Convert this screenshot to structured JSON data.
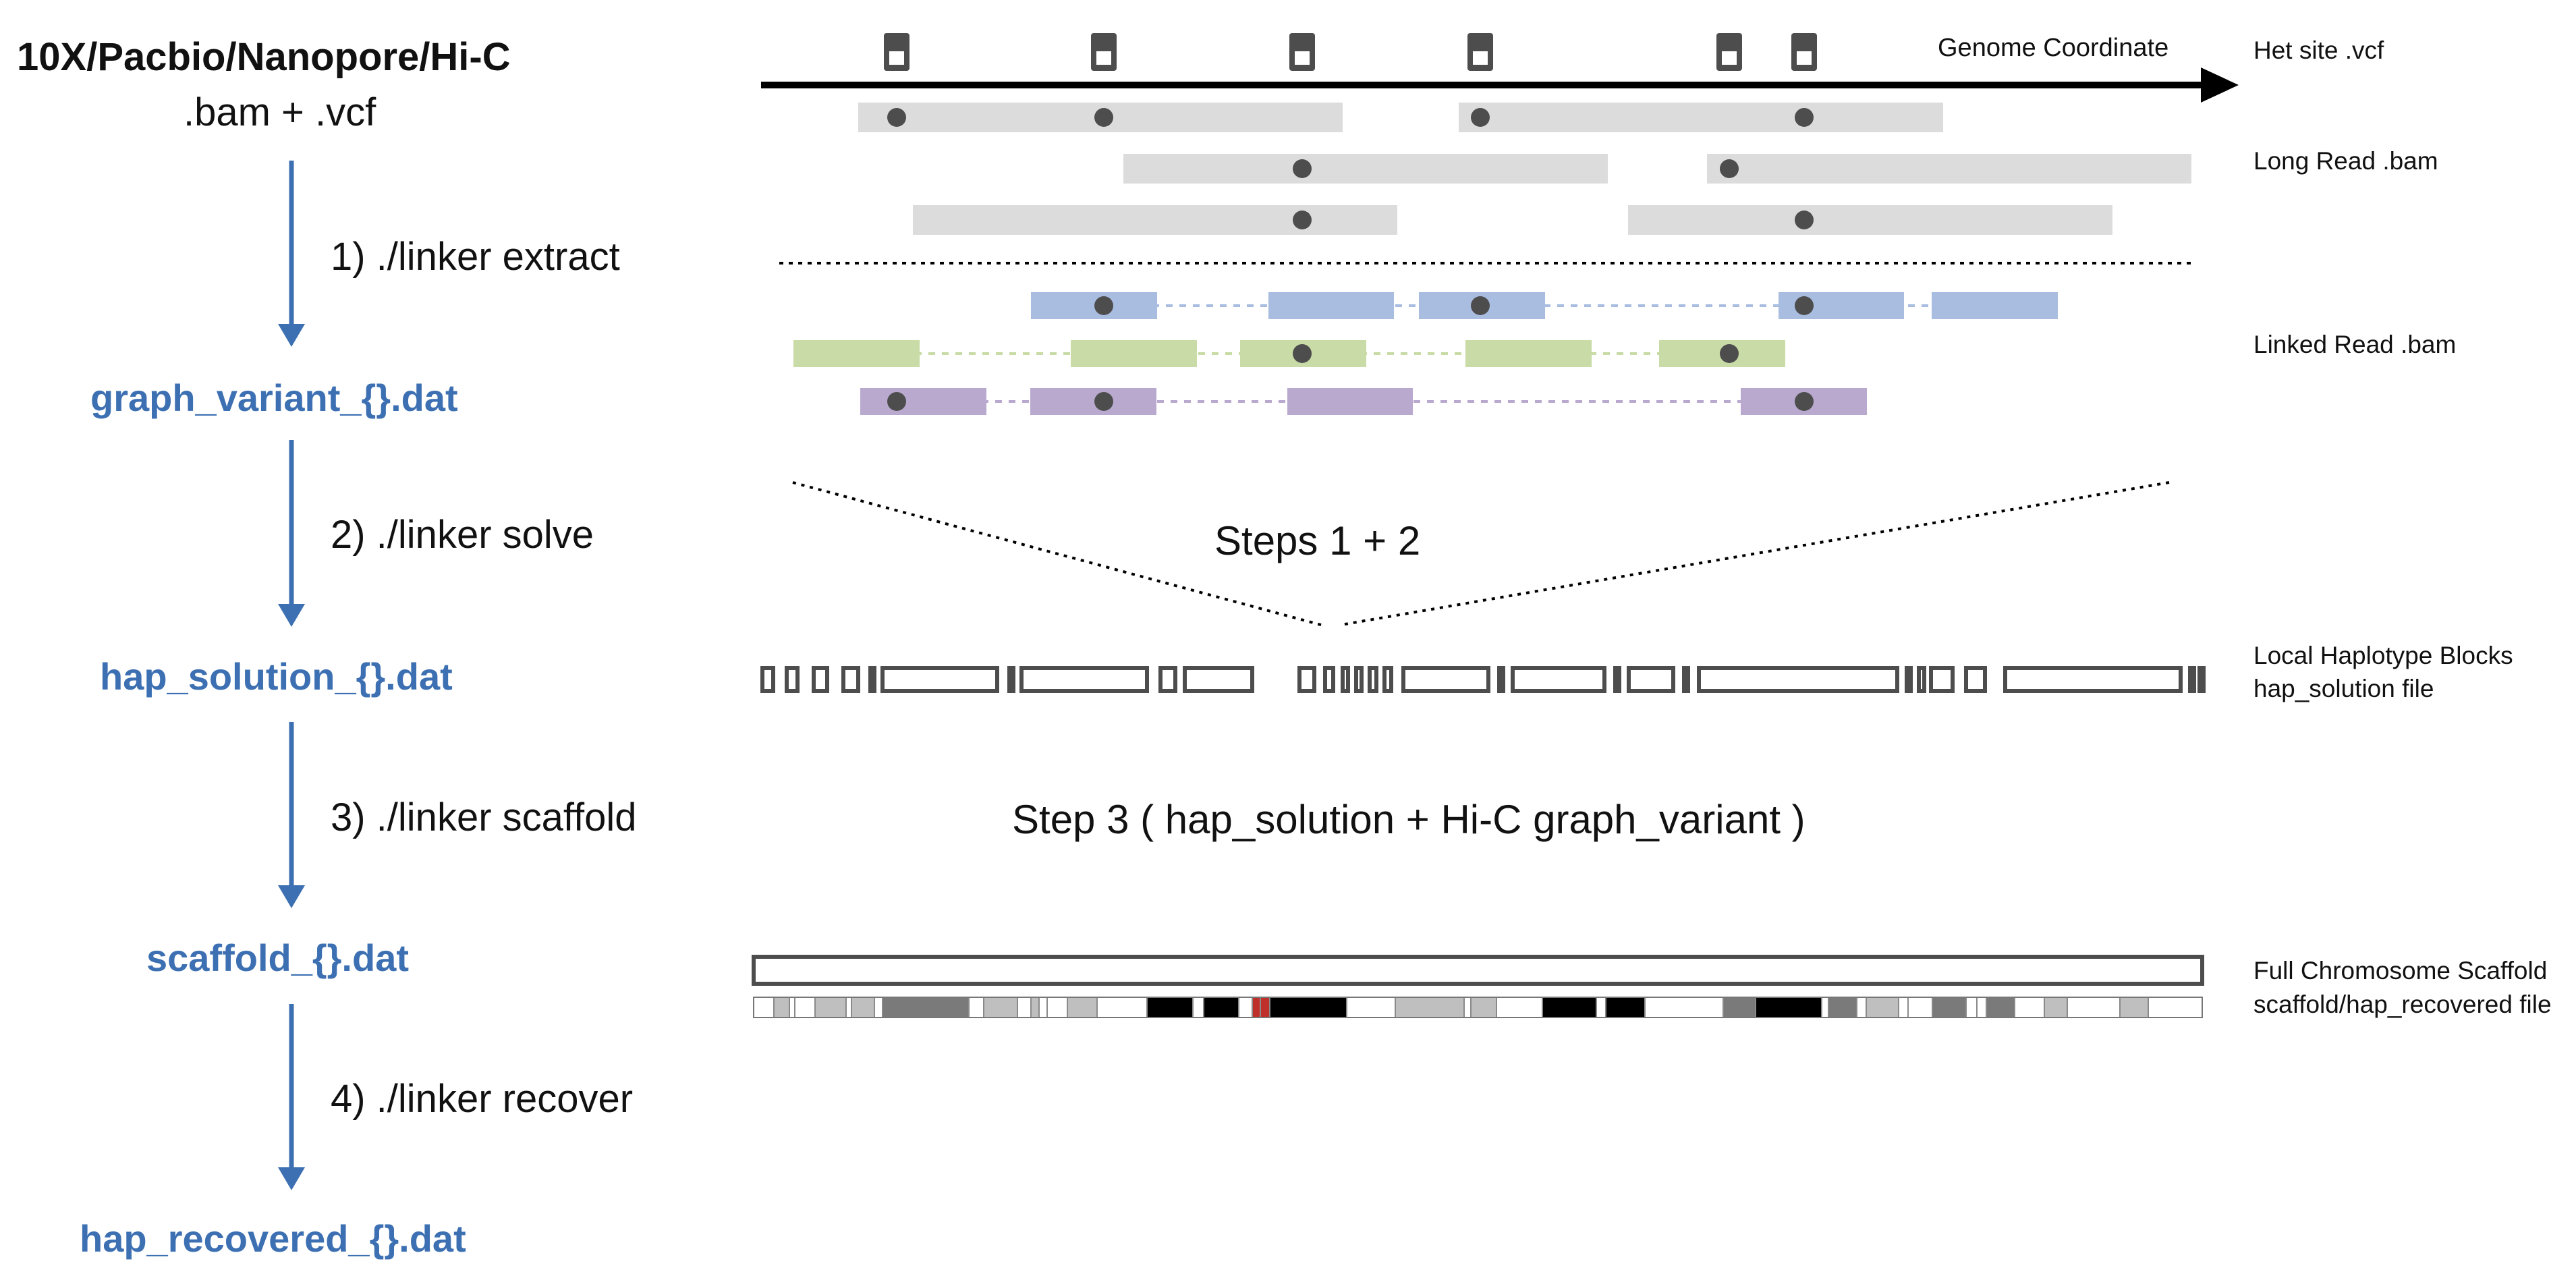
{
  "colors": {
    "accent_blue": "#3d70b2",
    "read_gray": "#dcdcdc",
    "linked_blue": "#a9bde0",
    "linked_green": "#c9dba6",
    "linked_purple": "#b9a9cf",
    "variant_dot": "#4d4d4d",
    "outline": "#4d4d4d",
    "highlight_red": "#c0302a"
  },
  "pipeline": {
    "input_title": "10X/Pacbio/Nanopore/Hi-C",
    "input_files": ".bam + .vcf",
    "steps": [
      {
        "label": "1)  ./linker extract",
        "output": "graph_variant_{}.dat"
      },
      {
        "label": "2)  ./linker solve",
        "output": "hap_solution_{}.dat"
      },
      {
        "label": "3)  ./linker scaffold",
        "output": "scaffold_{}.dat"
      },
      {
        "label": "4)  ./linker recover",
        "output": "hap_recovered_{}.dat"
      }
    ]
  },
  "diagram": {
    "axis_label": "Genome Coordinate",
    "steps12_label": "Steps 1 + 2",
    "step3_label": "Step 3 ( hap_solution + Hi-C graph_variant  )",
    "right_labels": {
      "het_site": "Het site .vcf",
      "long_read": "Long Read .bam",
      "linked_read": "Linked Read .bam",
      "local_blocks_1": "Local Haplotype Blocks",
      "local_blocks_2": "hap_solution file",
      "full_scaffold_1": "Full Chromosome Scaffold",
      "full_scaffold_2": "scaffold/hap_recovered file"
    }
  }
}
